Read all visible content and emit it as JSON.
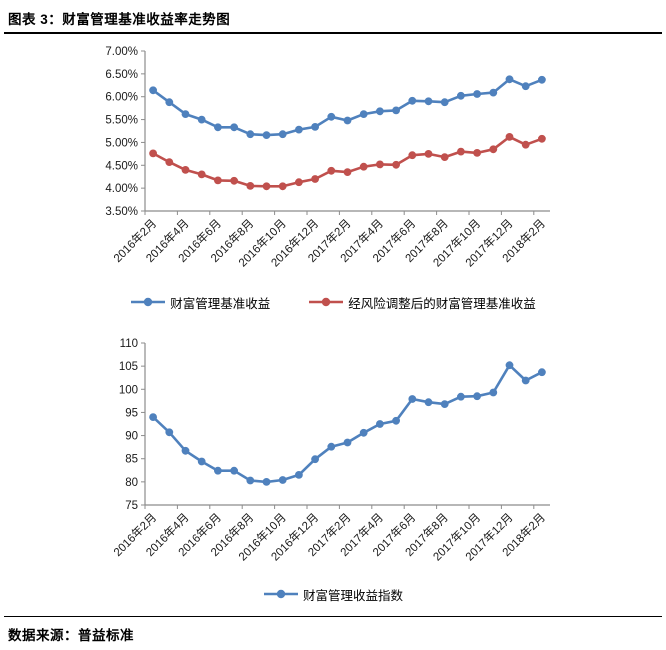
{
  "header": {
    "title": "图表 3：财富管理基准收益率走势图"
  },
  "footer": {
    "text": "数据来源：普益标准"
  },
  "colors": {
    "blue": "#4F81BD",
    "red": "#C0504D",
    "axis": "#8c8c8c",
    "label": "#1a1a1a",
    "title_text": "#000000",
    "rule": "#000000"
  },
  "chart_data": [
    {
      "type": "line",
      "title": "",
      "categories": [
        "2016年2月",
        "2016年3月",
        "2016年4月",
        "2016年5月",
        "2016年6月",
        "2016年7月",
        "2016年8月",
        "2016年9月",
        "2016年10月",
        "2016年11月",
        "2016年12月",
        "2017年1月",
        "2017年2月",
        "2017年3月",
        "2017年4月",
        "2017年5月",
        "2017年6月",
        "2017年7月",
        "2017年8月",
        "2017年9月",
        "2017年10月",
        "2017年11月",
        "2017年12月",
        "2018年1月",
        "2018年2月"
      ],
      "x_tick_every": 2,
      "x_tick_labels": [
        "2016年2月",
        "2016年4月",
        "2016年6月",
        "2016年8月",
        "2016年10月",
        "2016年12月",
        "2017年2月",
        "2017年4月",
        "2017年6月",
        "2017年8月",
        "2017年10月",
        "2017年12月",
        "2018年2月"
      ],
      "ylim": [
        3.5,
        7.0
      ],
      "ytick_step": 0.5,
      "ytick_labels": [
        "7.00%",
        "6.50%",
        "6.00%",
        "5.50%",
        "5.00%",
        "4.50%",
        "4.00%",
        "3.50%"
      ],
      "grid": false,
      "legend_position": "bottom",
      "series": [
        {
          "name": "财富管理基准收益",
          "color": "#4F81BD",
          "values": [
            6.14,
            5.88,
            5.62,
            5.5,
            5.33,
            5.33,
            5.18,
            5.16,
            5.18,
            5.28,
            5.34,
            5.56,
            5.48,
            5.62,
            5.68,
            5.7,
            5.91,
            5.9,
            5.88,
            6.02,
            6.06,
            6.09,
            6.38,
            6.23,
            6.37
          ]
        },
        {
          "name": "经风险调整后的财富管理基准收益",
          "color": "#C0504D",
          "values": [
            4.76,
            4.57,
            4.4,
            4.3,
            4.17,
            4.16,
            4.05,
            4.04,
            4.04,
            4.13,
            4.2,
            4.38,
            4.35,
            4.47,
            4.52,
            4.51,
            4.72,
            4.75,
            4.68,
            4.8,
            4.77,
            4.85,
            5.12,
            4.95,
            5.08
          ]
        }
      ]
    },
    {
      "type": "line",
      "title": "",
      "categories": [
        "2016年2月",
        "2016年3月",
        "2016年4月",
        "2016年5月",
        "2016年6月",
        "2016年7月",
        "2016年8月",
        "2016年9月",
        "2016年10月",
        "2016年11月",
        "2016年12月",
        "2017年1月",
        "2017年2月",
        "2017年3月",
        "2017年4月",
        "2017年5月",
        "2017年6月",
        "2017年7月",
        "2017年8月",
        "2017年9月",
        "2017年10月",
        "2017年11月",
        "2017年12月",
        "2018年1月",
        "2018年2月"
      ],
      "x_tick_every": 2,
      "x_tick_labels": [
        "2016年2月",
        "2016年4月",
        "2016年6月",
        "2016年8月",
        "2016年10月",
        "2016年12月",
        "2017年2月",
        "2017年4月",
        "2017年6月",
        "2017年8月",
        "2017年10月",
        "2017年12月",
        "2018年2月"
      ],
      "ylim": [
        75,
        110
      ],
      "ytick_step": 5,
      "ytick_labels": [
        "110",
        "105",
        "100",
        "95",
        "90",
        "85",
        "80",
        "75"
      ],
      "grid": false,
      "legend_position": "bottom",
      "series": [
        {
          "name": "财富管理收益指数",
          "color": "#4F81BD",
          "values": [
            94.0,
            90.7,
            86.7,
            84.4,
            82.4,
            82.4,
            80.3,
            80.0,
            80.4,
            81.5,
            84.9,
            87.6,
            88.5,
            90.6,
            92.5,
            93.2,
            97.9,
            97.2,
            96.8,
            98.4,
            98.5,
            99.3,
            105.2,
            101.9,
            103.7
          ]
        }
      ]
    }
  ]
}
